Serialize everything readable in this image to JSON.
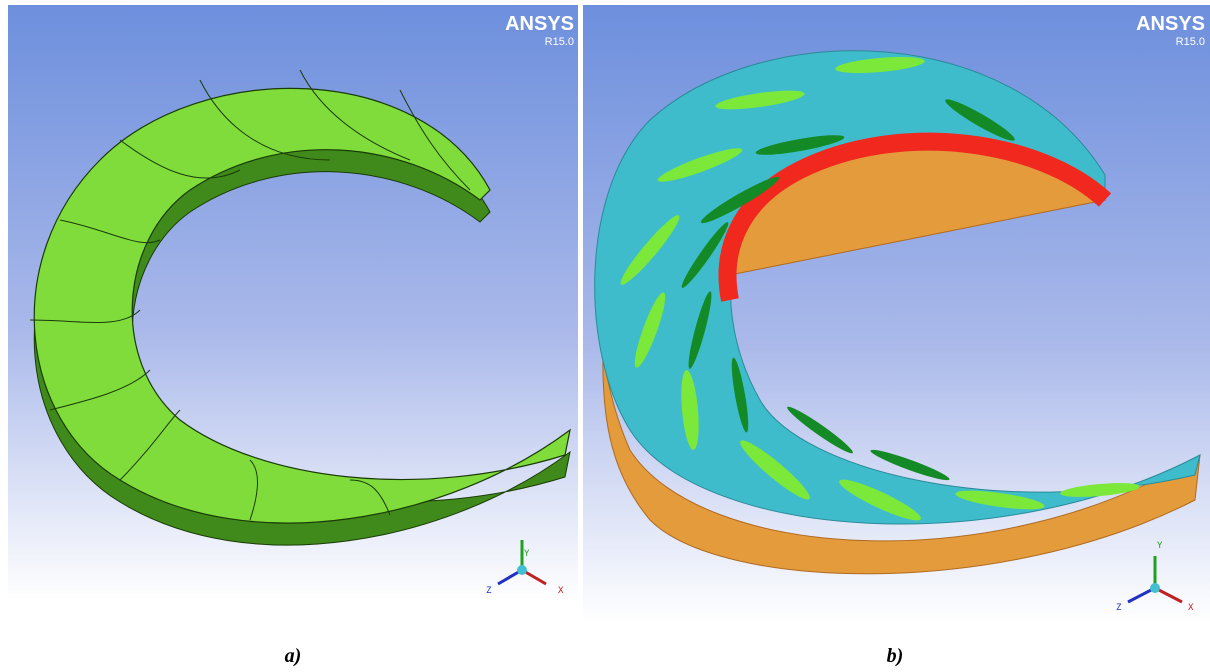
{
  "panels": [
    {
      "logo": "ANSYS",
      "version": "R15.0",
      "axes": {
        "y": "Y",
        "z": "Z",
        "x": "X"
      },
      "caption": "a)"
    },
    {
      "logo": "ANSYS",
      "version": "R15.0",
      "axes": {
        "y": "Y",
        "z": "Z",
        "x": "X"
      },
      "caption": "b)"
    }
  ]
}
